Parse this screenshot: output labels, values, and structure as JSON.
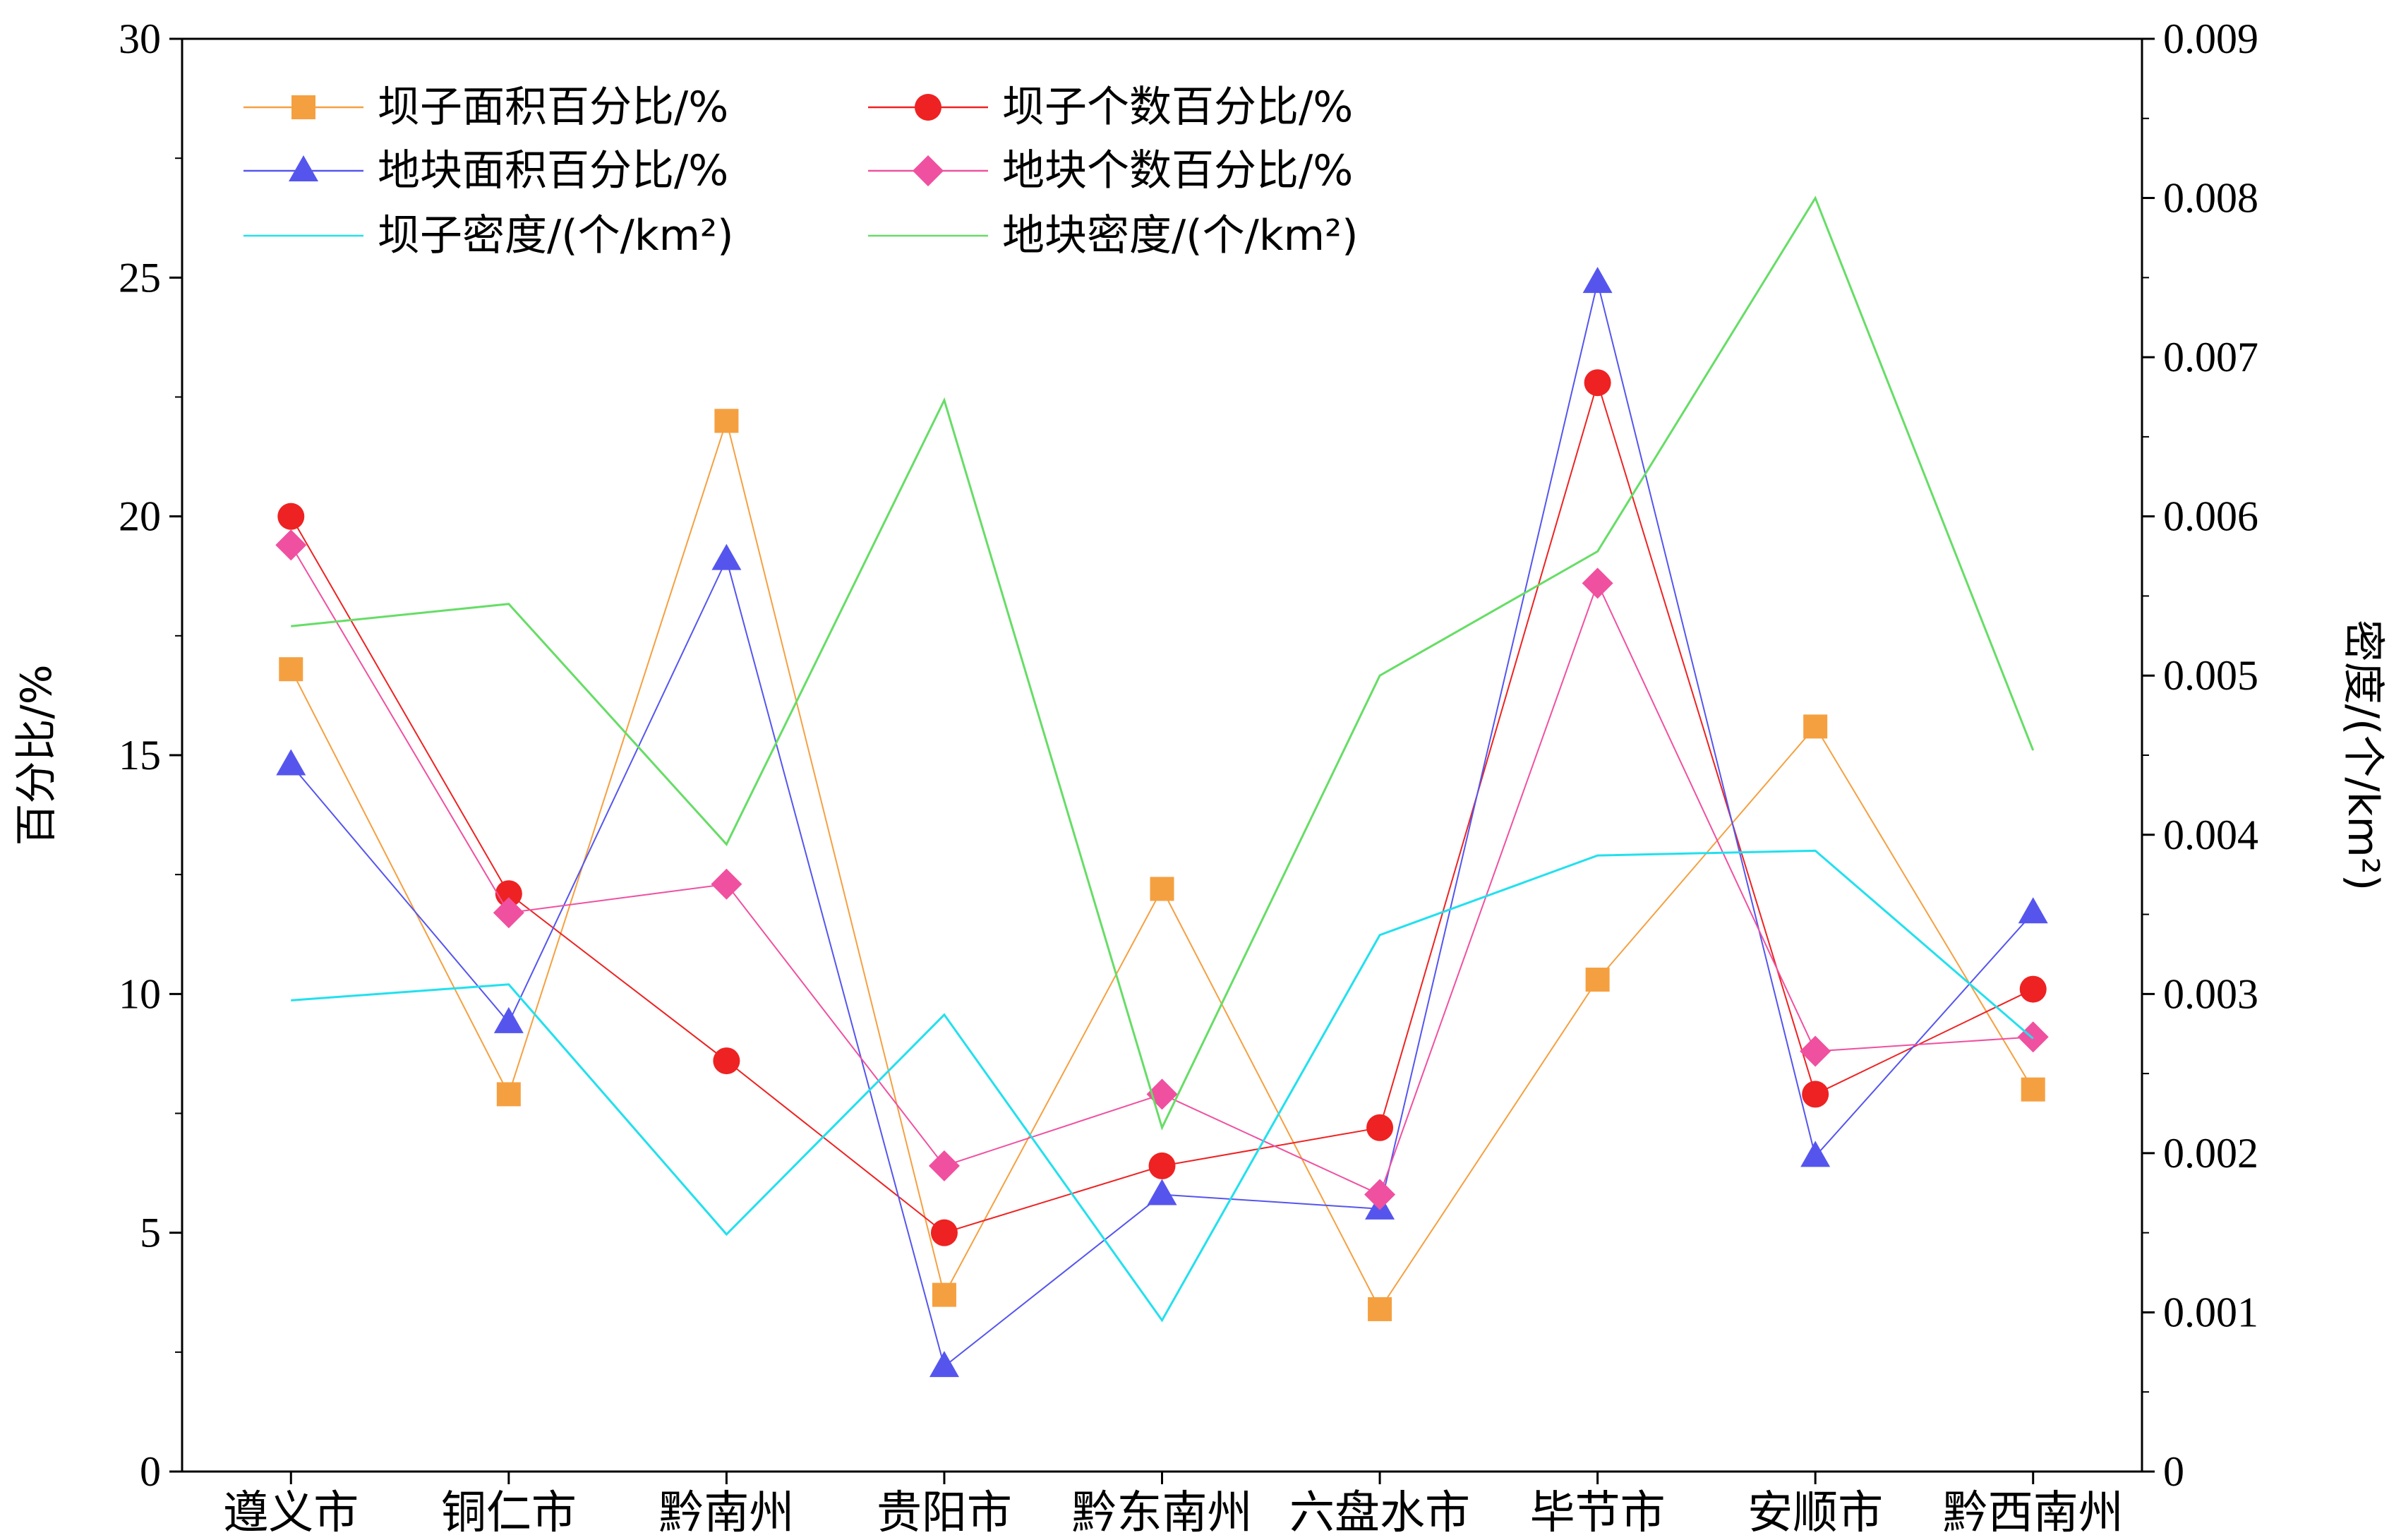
{
  "chart_data": {
    "type": "line",
    "categories": [
      "遵义市",
      "铜仁市",
      "黔南州",
      "贵阳市",
      "黔东南州",
      "六盘水市",
      "毕节市",
      "安顺市",
      "黔西南州"
    ],
    "y_left": {
      "label": "百分比/%",
      "range": [
        0,
        30
      ],
      "ticks": [
        0,
        5,
        10,
        15,
        20,
        25,
        30
      ],
      "tick_labels": [
        "0",
        "5",
        "10",
        "15",
        "20",
        "25",
        "30"
      ]
    },
    "y_right": {
      "label": "密度/(个/km²)",
      "range": [
        0,
        0.009
      ],
      "ticks": [
        0,
        0.001,
        0.002,
        0.003,
        0.004,
        0.005,
        0.006,
        0.007,
        0.008,
        0.009
      ],
      "tick_labels": [
        "0",
        "0.001",
        "0.002",
        "0.003",
        "0.004",
        "0.005",
        "0.006",
        "0.007",
        "0.008",
        "0.009"
      ]
    },
    "legend_placement": "top-left",
    "grid": false,
    "series": [
      {
        "name": "坝子面积百分比/%",
        "axis": "left",
        "color": "#F5A040",
        "marker": "square",
        "values": [
          16.8,
          7.9,
          22.0,
          3.7,
          12.2,
          3.4,
          10.3,
          15.6,
          8.0
        ]
      },
      {
        "name": "坝子个数百分比/%",
        "axis": "left",
        "color": "#EE2222",
        "marker": "circle",
        "values": [
          20.0,
          12.1,
          8.6,
          5.0,
          6.4,
          7.2,
          22.8,
          7.9,
          10.1
        ]
      },
      {
        "name": "地块面积百分比/%",
        "axis": "left",
        "color": "#5555EE",
        "marker": "triangle",
        "values": [
          14.8,
          9.4,
          19.1,
          2.2,
          5.8,
          5.5,
          24.9,
          6.6,
          11.7
        ]
      },
      {
        "name": "地块个数百分比/%",
        "axis": "left",
        "color": "#F050A0",
        "marker": "diamond",
        "values": [
          19.4,
          11.7,
          12.3,
          6.4,
          7.9,
          5.8,
          18.6,
          8.8,
          9.1
        ]
      },
      {
        "name": "坝子密度/(个/km²)",
        "axis": "right",
        "color": "#22E0EE",
        "marker": "none",
        "values": [
          0.00296,
          0.00306,
          0.00149,
          0.00287,
          0.00095,
          0.00337,
          0.00387,
          0.0039,
          0.00272
        ]
      },
      {
        "name": "地块密度/(个/km²)",
        "axis": "right",
        "color": "#66DD66",
        "marker": "none",
        "values": [
          0.00531,
          0.00545,
          0.00394,
          0.00673,
          0.00216,
          0.005,
          0.00578,
          0.008,
          0.00453
        ]
      }
    ]
  }
}
